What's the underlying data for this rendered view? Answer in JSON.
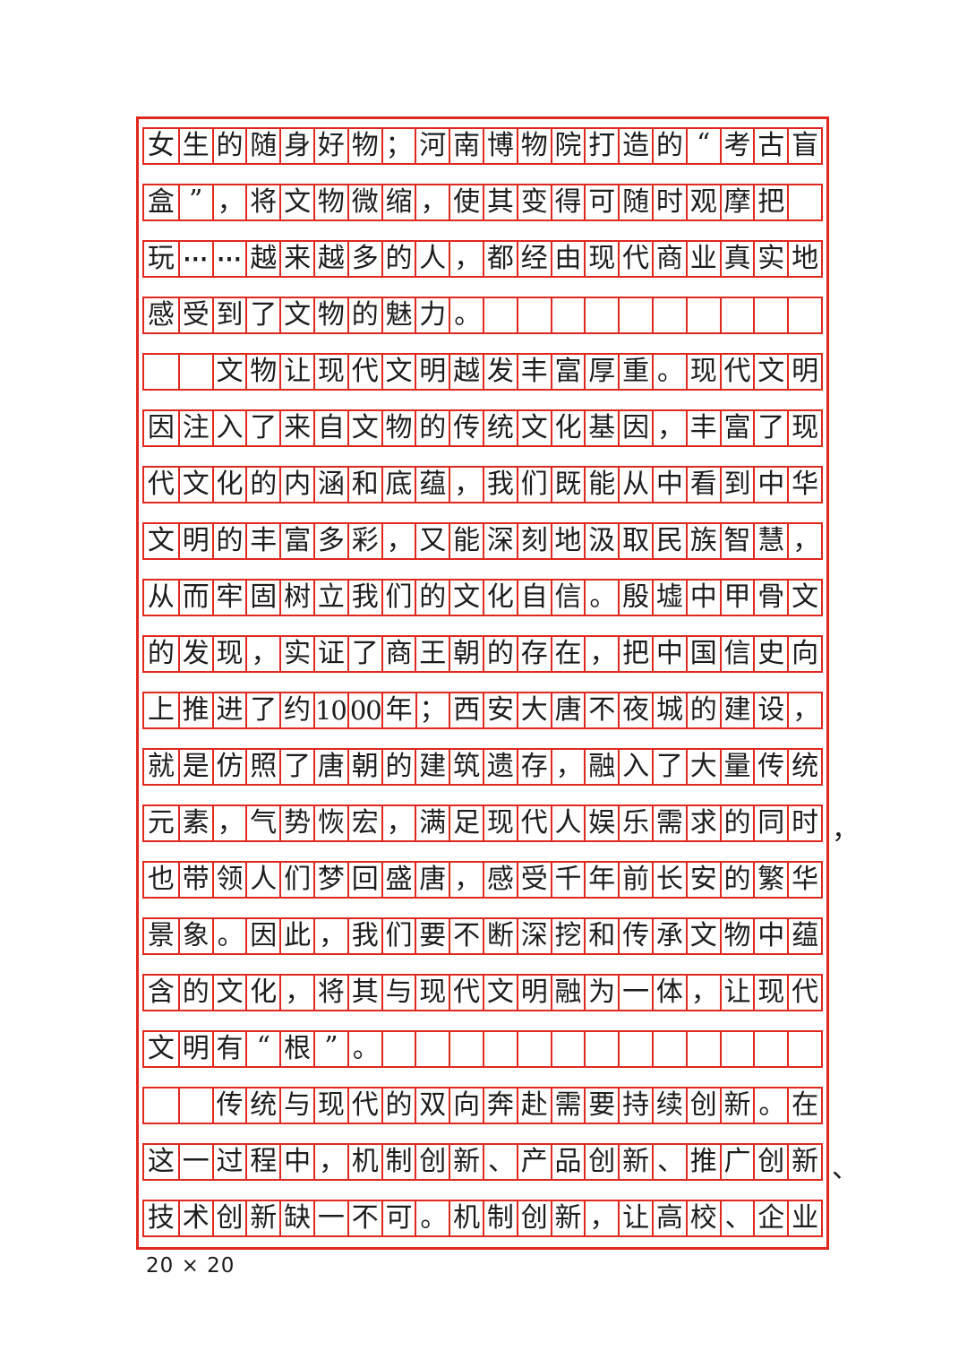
{
  "page": {
    "footer_label": "20 × 20"
  },
  "colors": {
    "grid_red": "#e0281e",
    "ink": "#1c1c1c",
    "paper": "#ffffff"
  },
  "grid": {
    "columns": 20,
    "row_count": 20,
    "rows": [
      {
        "cells": [
          "女",
          "生",
          "的",
          "随",
          "身",
          "好",
          "物",
          "；",
          "河",
          "南",
          "博",
          "物",
          "院",
          "打",
          "造",
          "的",
          "“",
          "考",
          "古",
          "盲"
        ],
        "overflow": ""
      },
      {
        "cells": [
          "盒",
          "”",
          "，",
          "将",
          "文",
          "物",
          "微",
          "缩",
          "，",
          "使",
          "其",
          "变",
          "得",
          "可",
          "随",
          "时",
          "观",
          "摩",
          "把",
          ""
        ],
        "overflow": ""
      },
      {
        "cells": [
          "玩",
          "⋯",
          "⋯",
          "越",
          "来",
          "越",
          "多",
          "的",
          "人",
          "，",
          "都",
          "经",
          "由",
          "现",
          "代",
          "商",
          "业",
          "真",
          "实",
          "地"
        ],
        "overflow": ""
      },
      {
        "cells": [
          "感",
          "受",
          "到",
          "了",
          "文",
          "物",
          "的",
          "魅",
          "力",
          "。",
          "",
          "",
          "",
          "",
          "",
          "",
          "",
          "",
          "",
          ""
        ],
        "overflow": ""
      },
      {
        "cells": [
          "",
          "",
          "文",
          "物",
          "让",
          "现",
          "代",
          "文",
          "明",
          "越",
          "发",
          "丰",
          "富",
          "厚",
          "重",
          "。",
          "现",
          "代",
          "文",
          "明"
        ],
        "overflow": ""
      },
      {
        "cells": [
          "因",
          "注",
          "入",
          "了",
          "来",
          "自",
          "文",
          "物",
          "的",
          "传",
          "统",
          "文",
          "化",
          "基",
          "因",
          "，",
          "丰",
          "富",
          "了",
          "现"
        ],
        "overflow": ""
      },
      {
        "cells": [
          "代",
          "文",
          "化",
          "的",
          "内",
          "涵",
          "和",
          "底",
          "蕴",
          "，",
          "我",
          "们",
          "既",
          "能",
          "从",
          "中",
          "看",
          "到",
          "中",
          "华"
        ],
        "overflow": ""
      },
      {
        "cells": [
          "文",
          "明",
          "的",
          "丰",
          "富",
          "多",
          "彩",
          "，",
          "又",
          "能",
          "深",
          "刻",
          "地",
          "汲",
          "取",
          "民",
          "族",
          "智",
          "慧",
          "，"
        ],
        "overflow": ""
      },
      {
        "cells": [
          "从",
          "而",
          "牢",
          "固",
          "树",
          "立",
          "我",
          "们",
          "的",
          "文",
          "化",
          "自",
          "信",
          "。",
          "殷",
          "墟",
          "中",
          "甲",
          "骨",
          "文"
        ],
        "overflow": ""
      },
      {
        "cells": [
          "的",
          "发",
          "现",
          "，",
          "实",
          "证",
          "了",
          "商",
          "王",
          "朝",
          "的",
          "存",
          "在",
          "，",
          "把",
          "中",
          "国",
          "信",
          "史",
          "向"
        ],
        "overflow": ""
      },
      {
        "cells": [
          "上",
          "推",
          "进",
          "了",
          "约",
          "10",
          "00",
          "年",
          "；",
          "西",
          "安",
          "大",
          "唐",
          "不",
          "夜",
          "城",
          "的",
          "建",
          "设",
          "，"
        ],
        "overflow": ""
      },
      {
        "cells": [
          "就",
          "是",
          "仿",
          "照",
          "了",
          "唐",
          "朝",
          "的",
          "建",
          "筑",
          "遗",
          "存",
          "，",
          "融",
          "入",
          "了",
          "大",
          "量",
          "传",
          "统"
        ],
        "overflow": ""
      },
      {
        "cells": [
          "元",
          "素",
          "，",
          "气",
          "势",
          "恢",
          "宏",
          "，",
          "满",
          "足",
          "现",
          "代",
          "人",
          "娱",
          "乐",
          "需",
          "求",
          "的",
          "同",
          "时"
        ],
        "overflow": "，"
      },
      {
        "cells": [
          "也",
          "带",
          "领",
          "人",
          "们",
          "梦",
          "回",
          "盛",
          "唐",
          "，",
          "感",
          "受",
          "千",
          "年",
          "前",
          "长",
          "安",
          "的",
          "繁",
          "华"
        ],
        "overflow": ""
      },
      {
        "cells": [
          "景",
          "象",
          "。",
          "因",
          "此",
          "，",
          "我",
          "们",
          "要",
          "不",
          "断",
          "深",
          "挖",
          "和",
          "传",
          "承",
          "文",
          "物",
          "中",
          "蕴"
        ],
        "overflow": ""
      },
      {
        "cells": [
          "含",
          "的",
          "文",
          "化",
          "，",
          "将",
          "其",
          "与",
          "现",
          "代",
          "文",
          "明",
          "融",
          "为",
          "一",
          "体",
          "，",
          "让",
          "现",
          "代"
        ],
        "overflow": ""
      },
      {
        "cells": [
          "文",
          "明",
          "有",
          "“",
          "根",
          "”",
          "。",
          "",
          "",
          "",
          "",
          "",
          "",
          "",
          "",
          "",
          "",
          "",
          "",
          ""
        ],
        "overflow": ""
      },
      {
        "cells": [
          "",
          "",
          "传",
          "统",
          "与",
          "现",
          "代",
          "的",
          "双",
          "向",
          "奔",
          "赴",
          "需",
          "要",
          "持",
          "续",
          "创",
          "新",
          "。",
          "在"
        ],
        "overflow": ""
      },
      {
        "cells": [
          "这",
          "一",
          "过",
          "程",
          "中",
          "，",
          "机",
          "制",
          "创",
          "新",
          "、",
          "产",
          "品",
          "创",
          "新",
          "、",
          "推",
          "广",
          "创",
          "新"
        ],
        "overflow": "、"
      },
      {
        "cells": [
          "技",
          "术",
          "创",
          "新",
          "缺",
          "一",
          "不",
          "可",
          "。",
          "机",
          "制",
          "创",
          "新",
          "，",
          "让",
          "高",
          "校",
          "、",
          "企",
          "业"
        ],
        "overflow": ""
      }
    ]
  }
}
